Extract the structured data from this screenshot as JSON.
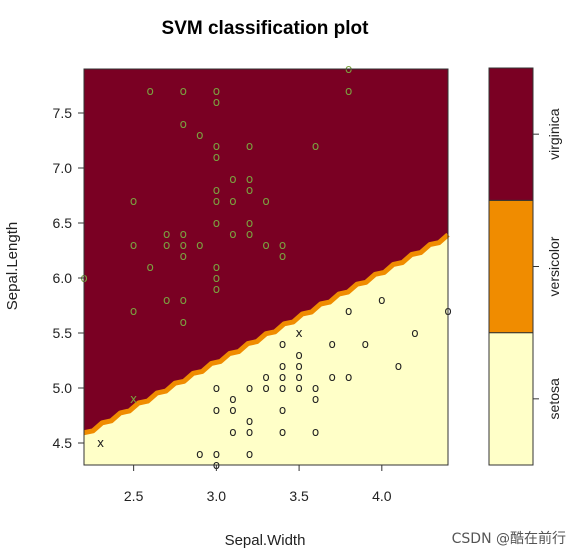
{
  "chart_data": {
    "type": "scatter",
    "title": "SVM classification plot",
    "xlabel": "Sepal.Width",
    "ylabel": "Sepal.Length",
    "xlim": [
      2.2,
      4.4
    ],
    "ylim": [
      4.3,
      7.9
    ],
    "xticks": [
      2.5,
      3.0,
      3.5,
      4.0
    ],
    "xtick_labels": [
      "2.5",
      "3.0",
      "3.5",
      "4.0"
    ],
    "yticks": [
      4.5,
      5.0,
      5.5,
      6.0,
      6.5,
      7.0,
      7.5
    ],
    "ytick_labels": [
      "4.5",
      "5.0",
      "5.5",
      "6.0",
      "6.5",
      "7.0",
      "7.5"
    ],
    "regions": [
      {
        "class": "virginica",
        "color": "#7a0023"
      },
      {
        "class": "versicolor",
        "color": "#f08c00"
      },
      {
        "class": "setosa",
        "color": "#ffffc8"
      }
    ],
    "decision_boundary": {
      "x": [
        2.2,
        4.4
      ],
      "y": [
        4.58,
        6.38
      ]
    },
    "legend": {
      "position": "right",
      "entries": [
        {
          "label": "setosa",
          "color": "#ffffc8"
        },
        {
          "label": "versicolor",
          "color": "#f08c00"
        },
        {
          "label": "virginica",
          "color": "#7a0023"
        }
      ]
    },
    "marker_colors": {
      "upper": "#7aa040",
      "lower": "#222222"
    },
    "points": [
      {
        "x": 2.6,
        "y": 7.7,
        "m": "o"
      },
      {
        "x": 2.8,
        "y": 7.7,
        "m": "o"
      },
      {
        "x": 3.0,
        "y": 7.7,
        "m": "o"
      },
      {
        "x": 3.0,
        "y": 7.6,
        "m": "o"
      },
      {
        "x": 3.8,
        "y": 7.9,
        "m": "o"
      },
      {
        "x": 3.8,
        "y": 7.7,
        "m": "o"
      },
      {
        "x": 2.8,
        "y": 7.4,
        "m": "o"
      },
      {
        "x": 2.9,
        "y": 7.3,
        "m": "o"
      },
      {
        "x": 3.0,
        "y": 7.2,
        "m": "o"
      },
      {
        "x": 3.2,
        "y": 7.2,
        "m": "o"
      },
      {
        "x": 3.6,
        "y": 7.2,
        "m": "o"
      },
      {
        "x": 3.0,
        "y": 7.1,
        "m": "o"
      },
      {
        "x": 3.1,
        "y": 6.9,
        "m": "o"
      },
      {
        "x": 3.2,
        "y": 6.9,
        "m": "o"
      },
      {
        "x": 3.0,
        "y": 6.8,
        "m": "o"
      },
      {
        "x": 3.2,
        "y": 6.8,
        "m": "o"
      },
      {
        "x": 2.5,
        "y": 6.7,
        "m": "o"
      },
      {
        "x": 3.0,
        "y": 6.7,
        "m": "o"
      },
      {
        "x": 3.1,
        "y": 6.7,
        "m": "o"
      },
      {
        "x": 3.3,
        "y": 6.7,
        "m": "o"
      },
      {
        "x": 3.0,
        "y": 6.5,
        "m": "o"
      },
      {
        "x": 3.2,
        "y": 6.5,
        "m": "o"
      },
      {
        "x": 2.7,
        "y": 6.4,
        "m": "o"
      },
      {
        "x": 2.8,
        "y": 6.4,
        "m": "o"
      },
      {
        "x": 3.1,
        "y": 6.4,
        "m": "o"
      },
      {
        "x": 3.2,
        "y": 6.4,
        "m": "o"
      },
      {
        "x": 2.5,
        "y": 6.3,
        "m": "o"
      },
      {
        "x": 2.7,
        "y": 6.3,
        "m": "o"
      },
      {
        "x": 2.8,
        "y": 6.3,
        "m": "o"
      },
      {
        "x": 2.9,
        "y": 6.3,
        "m": "o"
      },
      {
        "x": 3.3,
        "y": 6.3,
        "m": "o"
      },
      {
        "x": 3.4,
        "y": 6.3,
        "m": "o"
      },
      {
        "x": 2.8,
        "y": 6.2,
        "m": "o"
      },
      {
        "x": 3.4,
        "y": 6.2,
        "m": "o"
      },
      {
        "x": 2.6,
        "y": 6.1,
        "m": "o"
      },
      {
        "x": 3.0,
        "y": 6.1,
        "m": "o"
      },
      {
        "x": 3.0,
        "y": 6.0,
        "m": "o"
      },
      {
        "x": 2.2,
        "y": 6.0,
        "m": "o"
      },
      {
        "x": 3.0,
        "y": 5.9,
        "m": "o"
      },
      {
        "x": 2.7,
        "y": 5.8,
        "m": "o"
      },
      {
        "x": 2.8,
        "y": 5.8,
        "m": "o"
      },
      {
        "x": 2.5,
        "y": 5.7,
        "m": "o"
      },
      {
        "x": 2.8,
        "y": 5.6,
        "m": "o"
      },
      {
        "x": 2.5,
        "y": 4.9,
        "m": "x"
      },
      {
        "x": 4.0,
        "y": 5.8,
        "m": "o"
      },
      {
        "x": 3.8,
        "y": 5.7,
        "m": "o"
      },
      {
        "x": 4.4,
        "y": 5.7,
        "m": "o"
      },
      {
        "x": 4.2,
        "y": 5.5,
        "m": "o"
      },
      {
        "x": 3.5,
        "y": 5.5,
        "m": "x"
      },
      {
        "x": 3.4,
        "y": 5.4,
        "m": "o"
      },
      {
        "x": 3.7,
        "y": 5.4,
        "m": "o"
      },
      {
        "x": 3.9,
        "y": 5.4,
        "m": "o"
      },
      {
        "x": 3.5,
        "y": 5.3,
        "m": "o"
      },
      {
        "x": 3.4,
        "y": 5.2,
        "m": "o"
      },
      {
        "x": 3.5,
        "y": 5.2,
        "m": "o"
      },
      {
        "x": 4.1,
        "y": 5.2,
        "m": "o"
      },
      {
        "x": 3.3,
        "y": 5.1,
        "m": "o"
      },
      {
        "x": 3.4,
        "y": 5.1,
        "m": "o"
      },
      {
        "x": 3.5,
        "y": 5.1,
        "m": "o"
      },
      {
        "x": 3.7,
        "y": 5.1,
        "m": "o"
      },
      {
        "x": 3.8,
        "y": 5.1,
        "m": "o"
      },
      {
        "x": 3.2,
        "y": 5.0,
        "m": "o"
      },
      {
        "x": 3.3,
        "y": 5.0,
        "m": "o"
      },
      {
        "x": 3.4,
        "y": 5.0,
        "m": "o"
      },
      {
        "x": 3.5,
        "y": 5.0,
        "m": "o"
      },
      {
        "x": 3.6,
        "y": 5.0,
        "m": "o"
      },
      {
        "x": 3.0,
        "y": 5.0,
        "m": "o"
      },
      {
        "x": 3.1,
        "y": 4.9,
        "m": "o"
      },
      {
        "x": 3.6,
        "y": 4.9,
        "m": "o"
      },
      {
        "x": 3.0,
        "y": 4.8,
        "m": "o"
      },
      {
        "x": 3.1,
        "y": 4.8,
        "m": "o"
      },
      {
        "x": 3.4,
        "y": 4.8,
        "m": "o"
      },
      {
        "x": 3.2,
        "y": 4.7,
        "m": "o"
      },
      {
        "x": 3.1,
        "y": 4.6,
        "m": "o"
      },
      {
        "x": 3.2,
        "y": 4.6,
        "m": "o"
      },
      {
        "x": 3.4,
        "y": 4.6,
        "m": "o"
      },
      {
        "x": 3.6,
        "y": 4.6,
        "m": "o"
      },
      {
        "x": 3.0,
        "y": 4.4,
        "m": "o"
      },
      {
        "x": 2.9,
        "y": 4.4,
        "m": "o"
      },
      {
        "x": 3.2,
        "y": 4.4,
        "m": "o"
      },
      {
        "x": 3.0,
        "y": 4.3,
        "m": "o"
      },
      {
        "x": 2.3,
        "y": 4.5,
        "m": "x"
      }
    ]
  },
  "watermark": "CSDN @酷在前行"
}
